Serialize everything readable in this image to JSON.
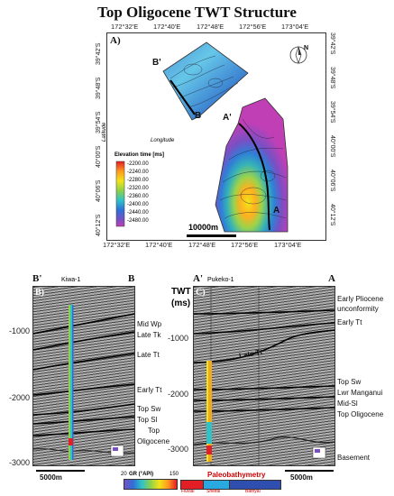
{
  "title": "Top Oligocene TWT Structure",
  "map": {
    "panel_label": "A)",
    "top_ticks": [
      "172°32'E",
      "172°40'E",
      "172°48'E",
      "172°56'E",
      "173°04'E"
    ],
    "bottom_ticks": [
      "172°32'E",
      "172°40'E",
      "172°48'E",
      "172°56'E",
      "173°04'E"
    ],
    "left_ticks": [
      "39°42'S",
      "39°48'S",
      "39°54'S",
      "40°00'S",
      "40°06'S",
      "40°12'S"
    ],
    "right_ticks": [
      "39°42'S",
      "39°48'S",
      "39°54'S",
      "40°00'S",
      "40°06'S",
      "40°12'S"
    ],
    "ylabel": "Latitude",
    "xlabel": "Longitude",
    "line_labels": {
      "b_start": "B'",
      "b_end": "B",
      "a_start": "A'",
      "a_end": "A"
    },
    "north_label": "N",
    "scale_label": "10000m",
    "legend": {
      "title": "Elevation time [ms]",
      "values": [
        "-2200.00",
        "-2240.00",
        "-2280.00",
        "-2320.00",
        "-2360.00",
        "-2400.00",
        "-2440.00",
        "-2480.00"
      ]
    }
  },
  "section_b": {
    "panel_label": "B)",
    "left_end": "B'",
    "right_end": "B",
    "well": "Kiwa-1",
    "depth_ticks": [
      "-1000",
      "-2000",
      "-3000"
    ],
    "horizons": [
      {
        "label": "Mid Wp"
      },
      {
        "label": "Late Tk"
      },
      {
        "label": "Late Tt"
      },
      {
        "label": "Early Tt"
      },
      {
        "label": "Top Sw"
      },
      {
        "label": "Top Sl"
      },
      {
        "label": "Top"
      },
      {
        "label": "Oligocene"
      }
    ],
    "scale_label": "5000m"
  },
  "section_c": {
    "panel_label": "C)",
    "left_end": "A'",
    "right_end": "A",
    "well": "Pukeko-1",
    "axis_title_1": "TWT",
    "axis_title_2": "(ms)",
    "depth_ticks": [
      "-1000",
      "-2000",
      "-3000"
    ],
    "inline_label": "Late Tt",
    "horizons": [
      {
        "label": "Early Pliocene"
      },
      {
        "label": "unconformity"
      },
      {
        "label": "Early Tt"
      },
      {
        "label": "Top Sw"
      },
      {
        "label": "Lwr Manganui"
      },
      {
        "label": "Mid-Sl"
      },
      {
        "label": "Top Oligocene"
      },
      {
        "label": "Basement"
      }
    ],
    "scale_label": "5000m"
  },
  "gr_bar": {
    "min": "20",
    "label": "GR (°API)",
    "max": "150"
  },
  "paleo": {
    "title": "Paleobathymetry",
    "items": [
      {
        "label": "Fluvial",
        "color": "#e31e24"
      },
      {
        "label": "Shelfal",
        "color": "#2aa8e0"
      },
      {
        "label": "Bathyal",
        "color": "#2f4fb0"
      }
    ]
  }
}
